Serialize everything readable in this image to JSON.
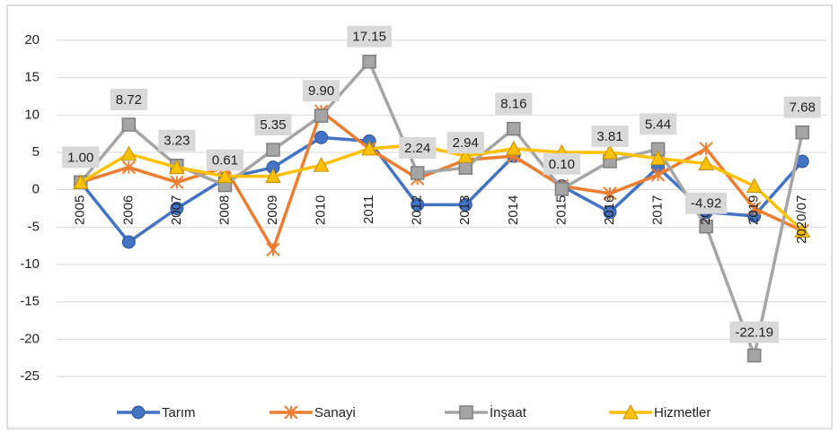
{
  "chart_data": {
    "type": "line",
    "categories": [
      "2005",
      "2006",
      "2007",
      "2008",
      "2009",
      "2010",
      "2011",
      "2012",
      "2013",
      "2014",
      "2015",
      "2016",
      "2017",
      "2018",
      "2019",
      "2020/07"
    ],
    "ylim": [
      -25,
      20
    ],
    "yticks": [
      -25,
      -20,
      -15,
      -10,
      -5,
      0,
      5,
      10,
      15,
      20
    ],
    "grid": true,
    "legend": "bottom",
    "series": [
      {
        "name": "Tarım",
        "color": "#4472c4",
        "marker": "circle",
        "values": [
          1.0,
          -7,
          -2.5,
          1.5,
          3,
          7,
          6.5,
          -2,
          -2,
          4.5,
          0.5,
          -3,
          3,
          -3,
          -3.5,
          3.8
        ]
      },
      {
        "name": "Sanayi",
        "color": "#ed7d31",
        "marker": "star",
        "values": [
          1.0,
          3,
          1,
          3,
          -8,
          10.5,
          5.5,
          1.5,
          4,
          4.5,
          0.5,
          -0.5,
          2,
          5.5,
          -2.5,
          -5.5
        ]
      },
      {
        "name": "İnşaat",
        "color": "#a5a5a5",
        "marker": "square",
        "values": [
          1.0,
          8.72,
          3.23,
          0.61,
          5.35,
          9.9,
          17.15,
          2.24,
          2.94,
          8.16,
          0.1,
          3.81,
          5.44,
          -4.92,
          -22.19,
          7.68
        ],
        "value_labels": [
          "1.00",
          "8.72",
          "3.23",
          "0.61",
          "5.35",
          "9.90",
          "17.15",
          "2.24",
          "2.94",
          "8.16",
          "0.10",
          "3.81",
          "5.44",
          "-4.92",
          "-22.19",
          "7.68"
        ]
      },
      {
        "name": "Hizmetler",
        "color": "#ffc000",
        "marker": "triangle",
        "values": [
          1.0,
          4.8,
          3,
          1.8,
          1.8,
          3.3,
          5.5,
          6,
          4.5,
          5.5,
          5,
          5,
          4.2,
          3.5,
          0.5,
          -5.5
        ]
      }
    ]
  }
}
